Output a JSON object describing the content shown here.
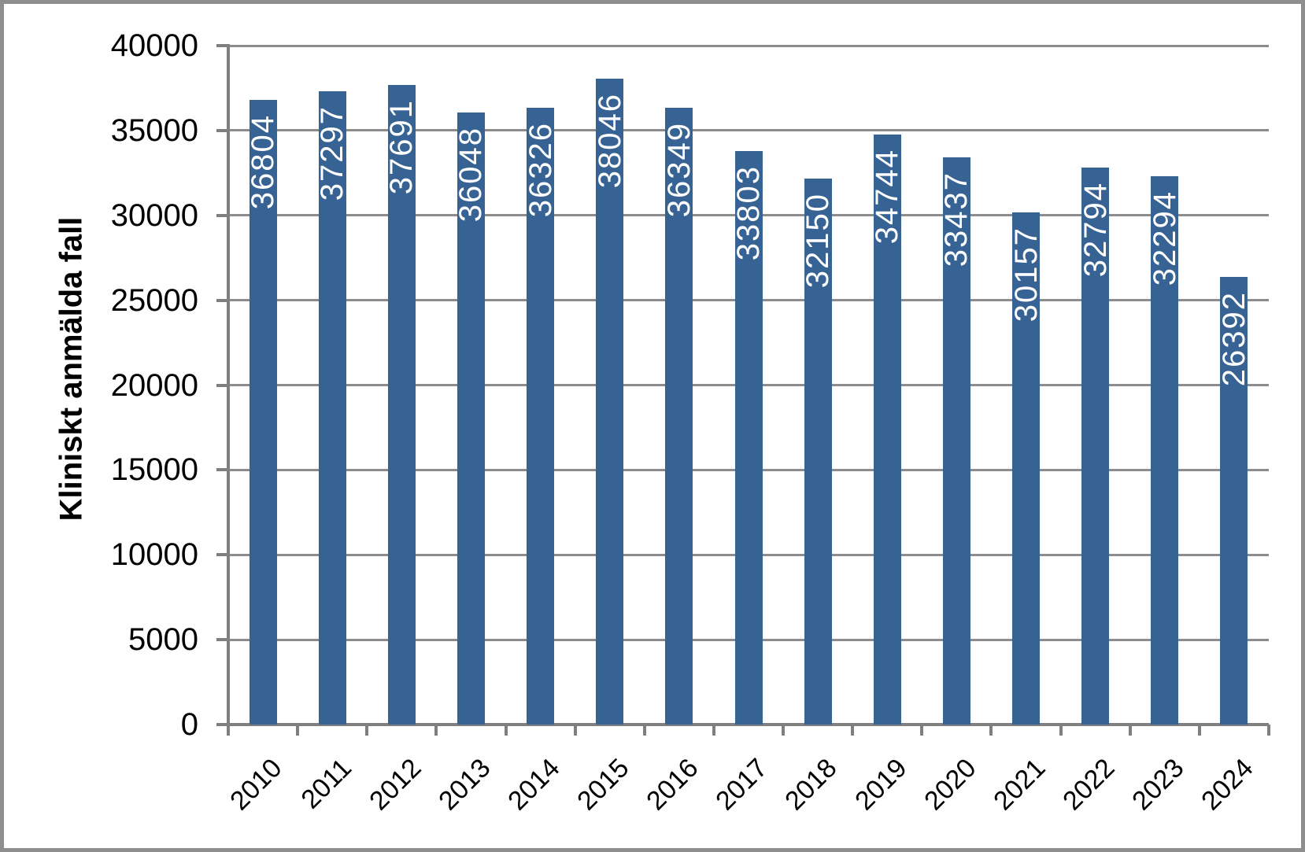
{
  "chart_data": {
    "type": "bar",
    "title": "",
    "xlabel": "",
    "ylabel": "Kliniskt anmälda fall",
    "categories": [
      "2010",
      "2011",
      "2012",
      "2013",
      "2014",
      "2015",
      "2016",
      "2017",
      "2018",
      "2019",
      "2020",
      "2021",
      "2022",
      "2023",
      "2024"
    ],
    "values": [
      36804,
      37297,
      37691,
      36048,
      36326,
      38046,
      36349,
      33803,
      32150,
      34744,
      33437,
      30157,
      32794,
      32294,
      26392
    ],
    "yticks": [
      0,
      5000,
      10000,
      15000,
      20000,
      25000,
      30000,
      35000,
      40000
    ],
    "ylim": [
      0,
      40000
    ],
    "grid": true,
    "legend": null,
    "value_label_rotation": "vertical-bottom-to-top",
    "category_label_rotation": 45,
    "colors": {
      "bar": "#376394",
      "value_label": "#FFFFFF",
      "gridline": "#8C8C8C",
      "axis": "#7F7F7F",
      "frame_border": "#8E8E8E",
      "text": "#000000"
    }
  }
}
